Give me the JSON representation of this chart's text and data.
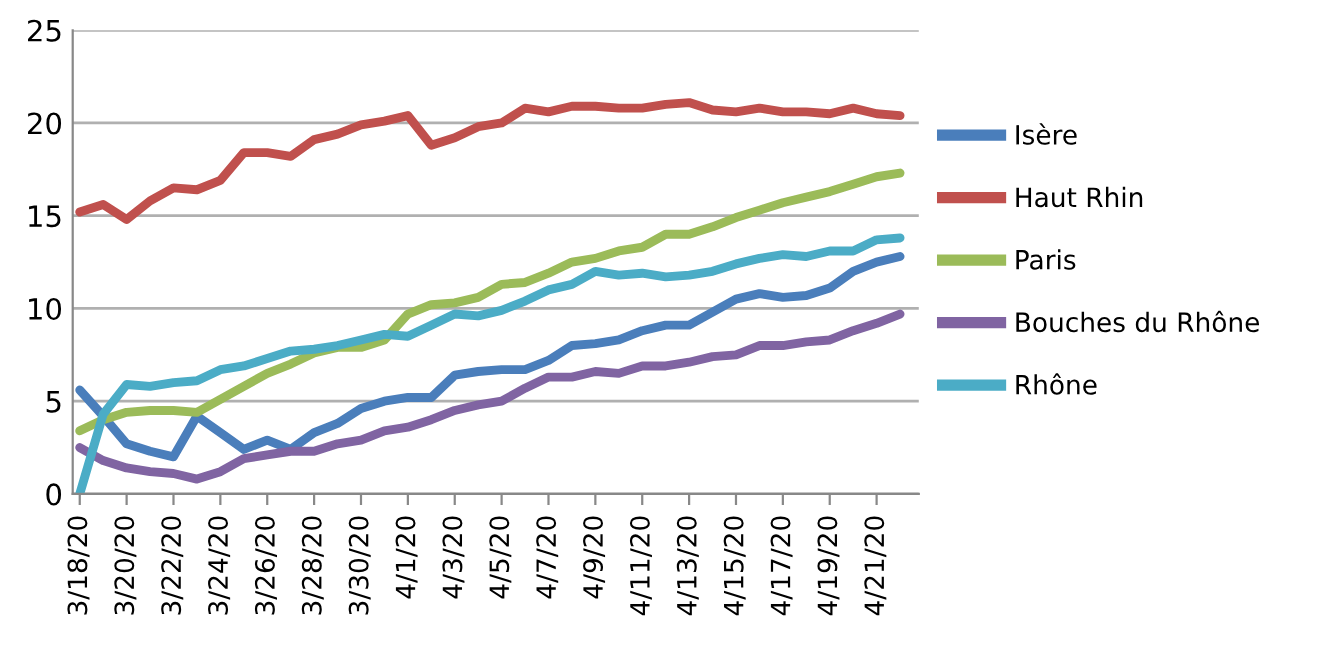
{
  "chart_data": {
    "type": "line",
    "categories": [
      "3/18/20",
      null,
      "3/20/20",
      null,
      "3/22/20",
      null,
      "3/24/20",
      null,
      "3/26/20",
      null,
      "3/28/20",
      null,
      "3/30/20",
      null,
      "4/1/20",
      null,
      "4/3/20",
      null,
      "4/5/20",
      null,
      "4/7/20",
      null,
      "4/9/20",
      null,
      "4/11/20",
      null,
      "4/13/20",
      null,
      "4/15/20",
      null,
      "4/17/20",
      null,
      "4/19/20",
      null,
      "4/21/20",
      null
    ],
    "series": [
      {
        "name": "Isère",
        "color": "#4a7ebb",
        "values": [
          5.6,
          4.2,
          2.7,
          2.3,
          2.0,
          4.2,
          3.3,
          2.4,
          2.9,
          2.4,
          3.3,
          3.8,
          4.6,
          5.0,
          5.2,
          5.2,
          6.4,
          6.6,
          6.7,
          6.7,
          7.2,
          8.0,
          8.1,
          8.3,
          8.8,
          9.1,
          9.1,
          9.8,
          10.5,
          10.8,
          10.6,
          10.7,
          11.1,
          12.0,
          12.5,
          12.8
        ]
      },
      {
        "name": "Haut Rhin",
        "color": "#c0504d",
        "values": [
          15.2,
          15.6,
          14.8,
          15.8,
          16.5,
          16.4,
          16.9,
          18.4,
          18.4,
          18.2,
          19.1,
          19.4,
          19.9,
          20.1,
          20.4,
          18.8,
          19.2,
          19.8,
          20.0,
          20.8,
          20.6,
          20.9,
          20.9,
          20.8,
          20.8,
          21.0,
          21.1,
          20.7,
          20.6,
          20.8,
          20.6,
          20.6,
          20.5,
          20.8,
          20.5,
          20.4
        ]
      },
      {
        "name": "Paris",
        "color": "#9bbb59",
        "values": [
          3.4,
          4.0,
          4.4,
          4.5,
          4.5,
          4.4,
          5.1,
          5.8,
          6.5,
          7.0,
          7.6,
          7.9,
          7.9,
          8.3,
          9.7,
          10.2,
          10.3,
          10.6,
          11.3,
          11.4,
          11.9,
          12.5,
          12.7,
          13.1,
          13.3,
          14.0,
          14.0,
          14.4,
          14.9,
          15.3,
          15.7,
          16.0,
          16.3,
          16.7,
          17.1,
          17.3
        ]
      },
      {
        "name": "Bouches du Rhône",
        "color": "#8064a2",
        "values": [
          2.5,
          1.8,
          1.4,
          1.2,
          1.1,
          0.8,
          1.2,
          1.9,
          2.1,
          2.3,
          2.3,
          2.7,
          2.9,
          3.4,
          3.6,
          4.0,
          4.5,
          4.8,
          5.0,
          5.7,
          6.3,
          6.3,
          6.6,
          6.5,
          6.9,
          6.9,
          7.1,
          7.4,
          7.5,
          8.0,
          8.0,
          8.2,
          8.3,
          8.8,
          9.2,
          9.7
        ]
      },
      {
        "name": "Rhône",
        "color": "#4bacc6",
        "values": [
          0,
          4.3,
          5.9,
          5.8,
          6.0,
          6.1,
          6.7,
          6.9,
          7.3,
          7.7,
          7.8,
          8.0,
          8.3,
          8.6,
          8.5,
          9.1,
          9.7,
          9.6,
          9.9,
          10.4,
          11.0,
          11.3,
          12.0,
          11.8,
          11.9,
          11.7,
          11.8,
          12.0,
          12.4,
          12.7,
          12.9,
          12.8,
          13.1,
          13.1,
          13.7,
          13.8
        ]
      }
    ],
    "ylim": [
      0,
      25
    ],
    "yticks": [
      0,
      5,
      10,
      15,
      20,
      25
    ],
    "grid": "y",
    "legend": "right",
    "marker": "none",
    "line_style": "solid"
  }
}
